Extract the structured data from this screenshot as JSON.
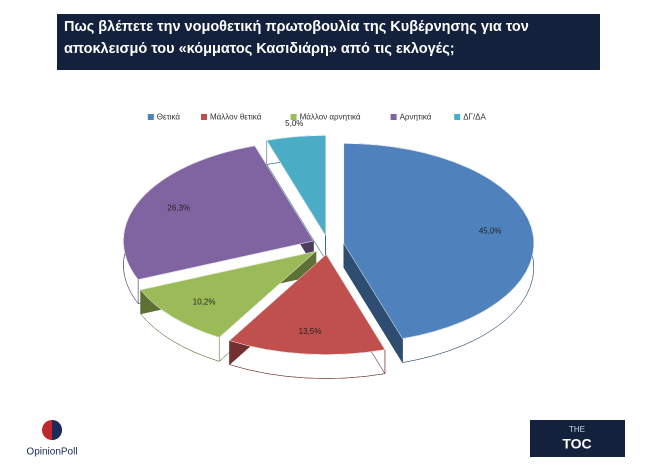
{
  "chart_data": {
    "type": "pie3d",
    "title": "Πως βλέπετε την νομοθετική πρωτοβουλία της Κυβέρνησης για τον αποκλεισμό του «κόμματος Κασιδιάρη» από τις εκλογές;",
    "categories": [
      "Θετικά",
      "Μάλλον θετικά",
      "Μάλλον αρνητικά",
      "Αρνητικά",
      "ΔΓ/ΔΑ"
    ],
    "values": [
      45.0,
      13.5,
      10.2,
      26.3,
      5.0
    ],
    "value_labels": [
      "45,0%",
      "13,5%",
      "10,2%",
      "26,3%",
      "5,0%"
    ],
    "colors": [
      "#4f81bd",
      "#c0504d",
      "#9bbb59",
      "#8064a2",
      "#4bacc6"
    ],
    "legend": "top"
  },
  "logos": {
    "left": "OpinionPoll",
    "right_top": "THE",
    "right_main": "TOC"
  }
}
